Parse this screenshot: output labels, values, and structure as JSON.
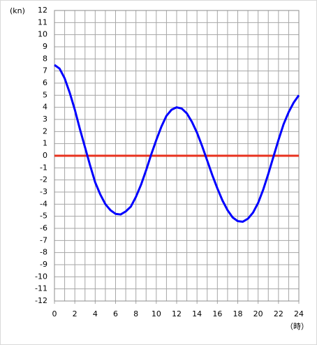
{
  "chart_data": {
    "type": "line",
    "y_unit_label": "(kn)",
    "x_unit_label": "（時）",
    "x": [
      0,
      0.5,
      1,
      1.5,
      2,
      2.5,
      3,
      3.5,
      4,
      4.5,
      5,
      5.5,
      6,
      6.5,
      7,
      7.5,
      8,
      8.5,
      9,
      9.5,
      10,
      10.5,
      11,
      11.5,
      12,
      12.5,
      13,
      13.5,
      14,
      14.5,
      15,
      15.5,
      16,
      16.5,
      17,
      17.5,
      18,
      18.5,
      19,
      19.5,
      20,
      20.5,
      21,
      21.5,
      22,
      22.5,
      23,
      23.5,
      24
    ],
    "series": [
      {
        "color": "#0000ff",
        "values": [
          7.5,
          7.2,
          6.4,
          5.2,
          3.8,
          2.2,
          0.7,
          -0.8,
          -2.2,
          -3.2,
          -4.0,
          -4.5,
          -4.8,
          -4.85,
          -4.6,
          -4.2,
          -3.4,
          -2.4,
          -1.2,
          0.1,
          1.3,
          2.4,
          3.3,
          3.8,
          4.0,
          3.9,
          3.5,
          2.8,
          1.9,
          0.8,
          -0.4,
          -1.6,
          -2.7,
          -3.7,
          -4.5,
          -5.1,
          -5.4,
          -5.45,
          -5.2,
          -4.7,
          -3.9,
          -2.8,
          -1.5,
          -0.1,
          1.3,
          2.6,
          3.6,
          4.4,
          5.0
        ]
      }
    ],
    "reference_line": {
      "y": 0,
      "color": "#e8321e"
    },
    "xlim": [
      0,
      24
    ],
    "ylim": [
      -12,
      12
    ],
    "xticks": [
      0,
      2,
      4,
      6,
      8,
      10,
      12,
      14,
      16,
      18,
      20,
      22,
      24
    ],
    "xgrid": [
      0,
      1,
      2,
      3,
      4,
      5,
      6,
      7,
      8,
      9,
      10,
      11,
      12,
      13,
      14,
      15,
      16,
      17,
      18,
      19,
      20,
      21,
      22,
      23,
      24
    ],
    "yticks": [
      -12,
      -11,
      -10,
      -9,
      -8,
      -7,
      -6,
      -5,
      -4,
      -3,
      -2,
      -1,
      0,
      1,
      2,
      3,
      4,
      5,
      6,
      7,
      8,
      9,
      10,
      11,
      12
    ],
    "grid": true
  }
}
